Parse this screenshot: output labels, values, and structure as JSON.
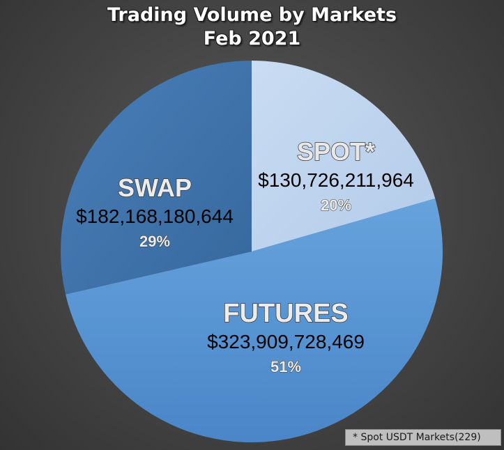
{
  "title_line1": "Trading Volume by Markets",
  "title_line2": "Feb 2021",
  "footnote": "* Spot USDT Markets(229)",
  "chart_data": {
    "type": "pie",
    "title": "Trading Volume by Markets Feb 2021",
    "slices": [
      {
        "label": "SPOT*",
        "value": 130726211964,
        "value_label": "$130,726,211,964",
        "percent": "20%",
        "color": "#bfd4ee"
      },
      {
        "label": "FUTURES",
        "value": 323909728469,
        "value_label": "$323,909,728,469",
        "percent": "51%",
        "color": "#5b9bd5"
      },
      {
        "label": "SWAP",
        "value": 182168180644,
        "value_label": "$182,168,180,644",
        "percent": "29%",
        "color": "#3f72a8"
      }
    ],
    "legend": "none",
    "data_labels": "inside"
  }
}
